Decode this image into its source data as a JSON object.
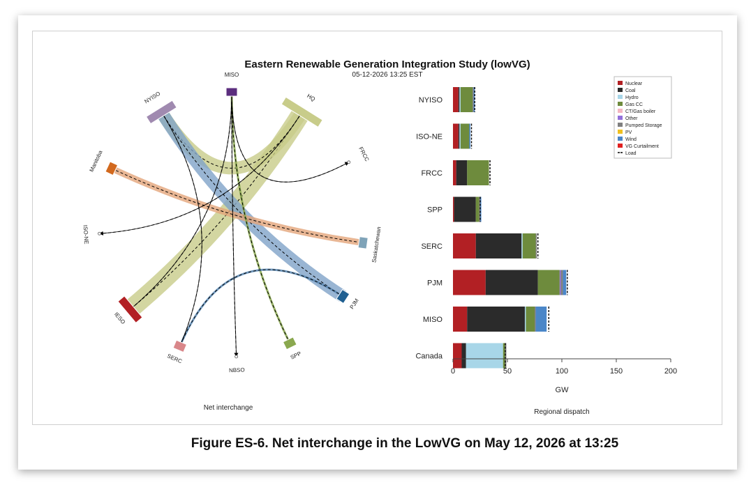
{
  "title": "Eastern Renewable Generation Integration Study (lowVG)",
  "subtitle": "05-12-2026 13:25 EST",
  "caption": "Figure ES-6. Net interchange in the LowVG on May 12, 2026 at 13:25",
  "chart_data": [
    {
      "type": "chord",
      "name": "Net interchange",
      "xlabel": "Net interchange",
      "regions": [
        {
          "name": "MISO",
          "color": "#5b2e7e"
        },
        {
          "name": "HQ",
          "color": "#c8cc8a"
        },
        {
          "name": "FRCC",
          "color": "#ffffff"
        },
        {
          "name": "Saskatchewan",
          "color": "#7fa3b8"
        },
        {
          "name": "PJM",
          "color": "#1f5f91"
        },
        {
          "name": "SPP",
          "color": "#8aa84f"
        },
        {
          "name": "NBSO",
          "color": "#ffffff"
        },
        {
          "name": "SERC",
          "color": "#d9878a"
        },
        {
          "name": "IESO",
          "color": "#b22024"
        },
        {
          "name": "ISO-NE",
          "color": "#ffffff"
        },
        {
          "name": "Manitoba",
          "color": "#d2691e"
        },
        {
          "name": "NYISO",
          "color": "#a08ab0"
        }
      ],
      "flows": [
        {
          "from": "HQ",
          "to": "IESO",
          "width": 3,
          "color": "#c8cc8a"
        },
        {
          "from": "HQ",
          "to": "NYISO",
          "width": 2,
          "color": "#c8cc8a"
        },
        {
          "from": "NYISO",
          "to": "PJM",
          "width": 2,
          "color": "#7fa3c8"
        },
        {
          "from": "Manitoba",
          "to": "Saskatchewan",
          "width": 1,
          "color": "#e3a57a"
        },
        {
          "from": "SPP",
          "to": "MISO",
          "width": 0.5,
          "color": "#8aa84f"
        },
        {
          "from": "PJM",
          "to": "SERC",
          "width": 0.5,
          "color": "#5b8ab5"
        },
        {
          "from": "MISO",
          "to": "IESO",
          "width": 0.3,
          "color": "#000000"
        },
        {
          "from": "MISO",
          "to": "FRCC",
          "width": 0.3,
          "color": "#000000"
        },
        {
          "from": "MISO",
          "to": "NBSO",
          "width": 0.3,
          "color": "#000000"
        },
        {
          "from": "HQ",
          "to": "ISO-NE",
          "width": 0.3,
          "color": "#000000"
        },
        {
          "from": "NYISO",
          "to": "SERC",
          "width": 0.3,
          "color": "#000000"
        }
      ]
    },
    {
      "type": "bar",
      "stacked": true,
      "orientation": "horizontal",
      "xlabel": "GW",
      "title": "Regional dispatch",
      "xlim": [
        0,
        200
      ],
      "xticks": [
        "0",
        "50",
        "100",
        "150",
        "200"
      ],
      "categories": [
        "NYISO",
        "ISO-NE",
        "FRCC",
        "SPP",
        "SERC",
        "PJM",
        "MISO",
        "Canada"
      ],
      "series": [
        {
          "name": "Nuclear",
          "color": "#b22024",
          "values": [
            5,
            5,
            3,
            1,
            21,
            30,
            13,
            8
          ]
        },
        {
          "name": "Coal",
          "color": "#2b2b2b",
          "values": [
            1,
            1,
            10,
            20,
            42,
            48,
            53,
            4
          ]
        },
        {
          "name": "Hydro",
          "color": "#a8d6e8",
          "values": [
            1,
            1,
            0,
            0,
            1,
            0,
            1,
            34
          ]
        },
        {
          "name": "Gas CC",
          "color": "#6e8b3d",
          "values": [
            11,
            8,
            20,
            3,
            12,
            20,
            8,
            2
          ]
        },
        {
          "name": "CT/Gas boiler",
          "color": "#f4b6c2",
          "values": [
            0,
            0,
            0,
            0,
            0,
            0,
            0,
            0
          ]
        },
        {
          "name": "Other",
          "color": "#9370db",
          "values": [
            0,
            0,
            0,
            0,
            0,
            1,
            0,
            0
          ]
        },
        {
          "name": "Pumped Storage",
          "color": "#808080",
          "values": [
            1,
            0,
            0,
            1,
            1,
            2,
            1,
            1
          ]
        },
        {
          "name": "PV",
          "color": "#f0c020",
          "values": [
            0,
            0,
            0,
            0,
            0,
            0,
            0,
            0
          ]
        },
        {
          "name": "Wind",
          "color": "#4a86c8",
          "values": [
            1,
            1,
            0,
            1,
            0,
            3,
            10,
            0
          ]
        },
        {
          "name": "VG Curtailment",
          "color": "#e02020",
          "values": [
            0,
            0,
            0,
            0,
            0,
            0,
            0,
            0
          ]
        }
      ],
      "load_label": "Load",
      "load": [
        20,
        17,
        34,
        25,
        78,
        105,
        88,
        48
      ]
    }
  ]
}
